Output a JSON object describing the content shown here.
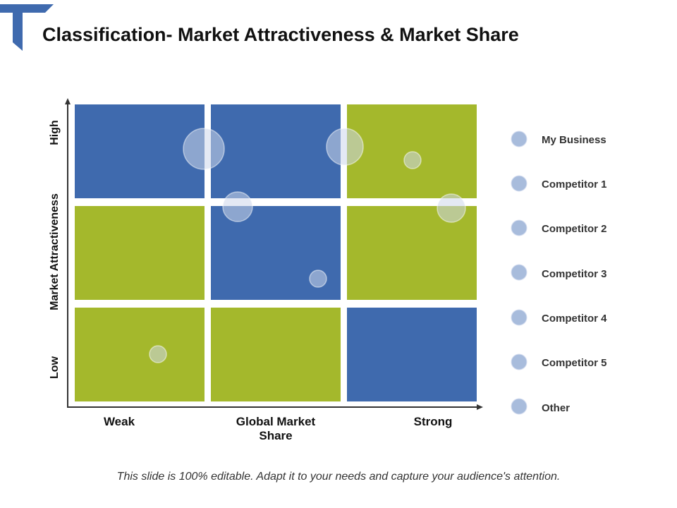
{
  "title": "Classification- Market Attractiveness & Market Share",
  "y_axis": {
    "high": "High",
    "label": "Market Attractiveness",
    "low": "Low"
  },
  "x_axis": {
    "weak": "Weak",
    "label": "Global Market Share",
    "strong": "Strong"
  },
  "legend": [
    "My Business",
    "Competitor 1",
    "Competitor 2",
    "Competitor 3",
    "Competitor 4",
    "Competitor 5",
    "Other"
  ],
  "footer": "This slide is 100% editable. Adapt it to your needs and capture your audience's attention."
}
